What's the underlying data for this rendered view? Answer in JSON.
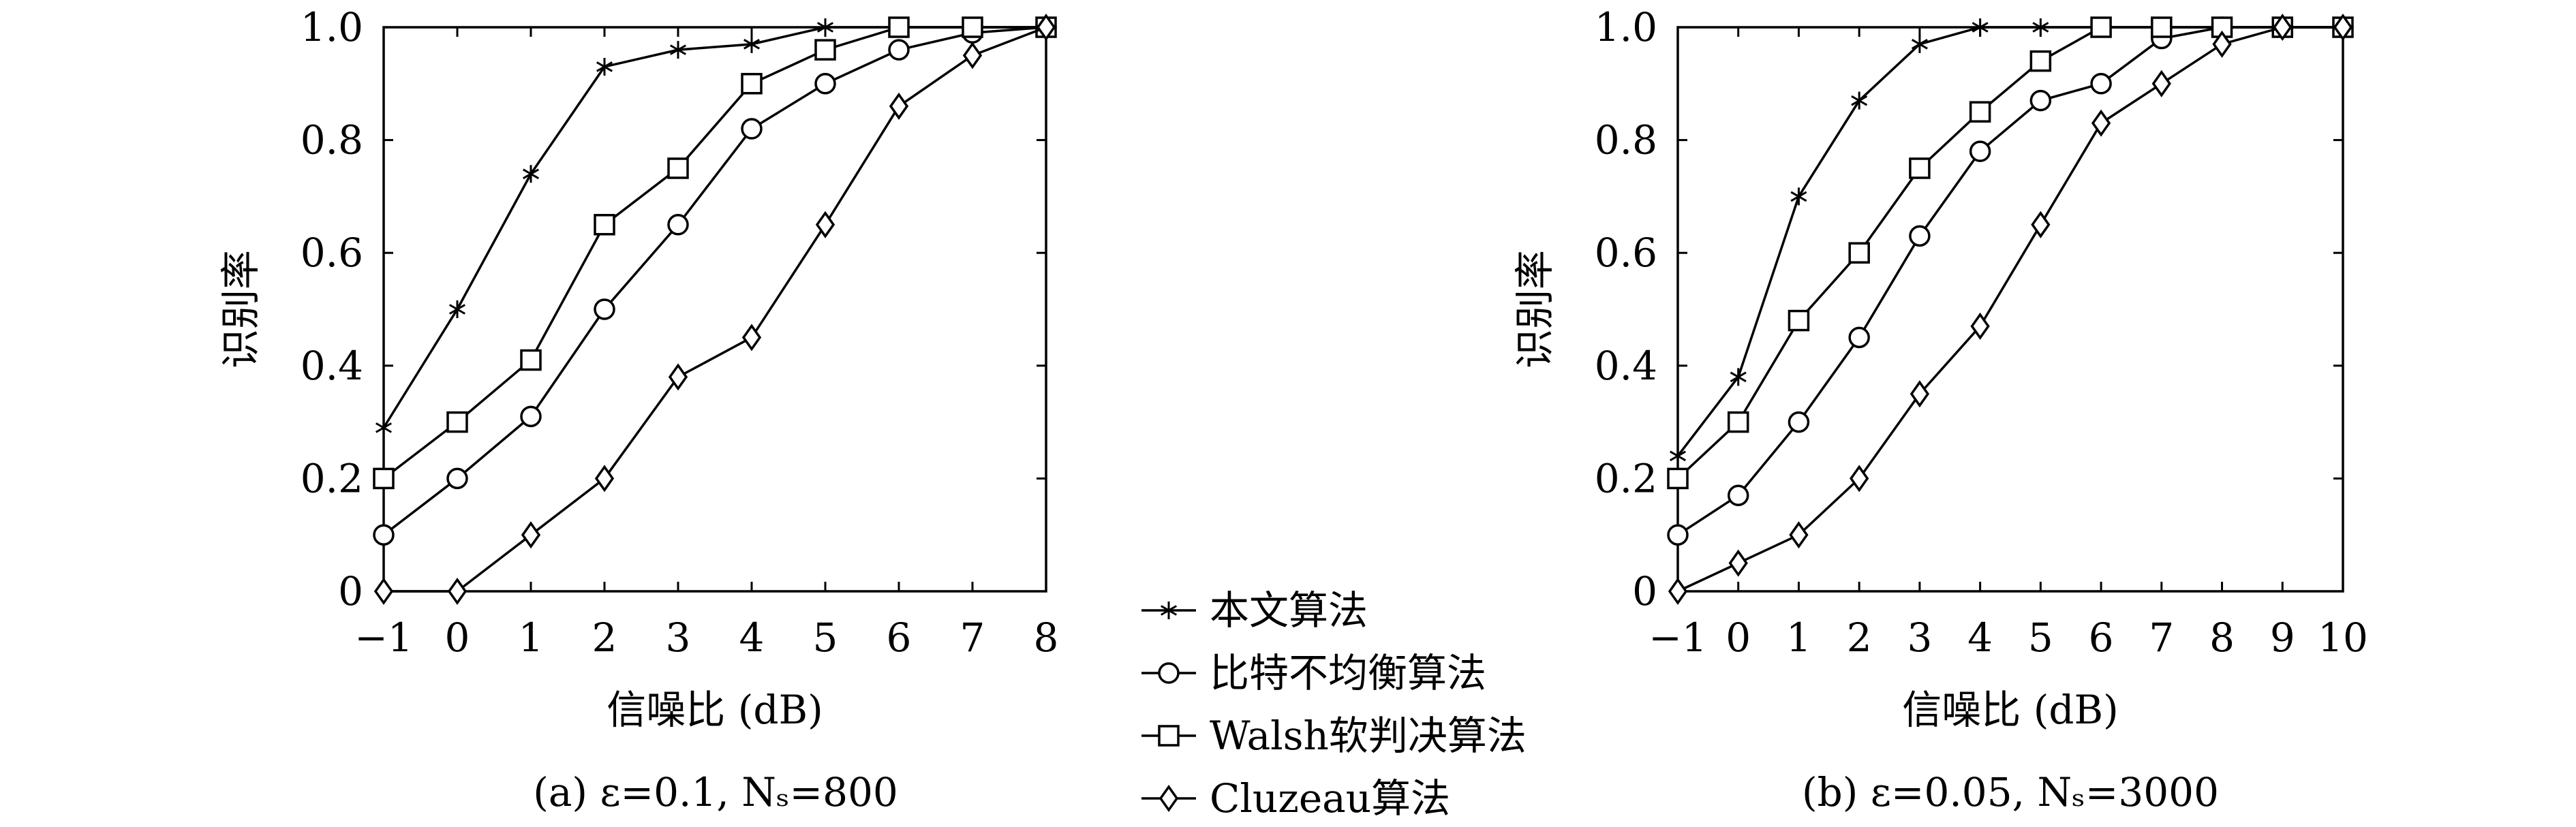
{
  "chart_data": [
    {
      "type": "line",
      "caption": "(a) ε=0.1, Nₛ=800",
      "xlabel": "信噪比 (dB)",
      "ylabel": "识别率",
      "xlim": [
        -1,
        8
      ],
      "ylim": [
        0,
        1.0
      ],
      "x_ticks": [
        "−1",
        "0",
        "1",
        "2",
        "3",
        "4",
        "5",
        "6",
        "7",
        "8"
      ],
      "y_ticks": [
        "0",
        "0.2",
        "0.4",
        "0.6",
        "0.8",
        "1.0"
      ],
      "grid": false,
      "x": [
        -1,
        0,
        1,
        2,
        3,
        4,
        5,
        6,
        7,
        8
      ],
      "series": [
        {
          "name": "本文算法",
          "marker": "star",
          "values": [
            0.29,
            0.5,
            0.74,
            0.93,
            0.96,
            0.97,
            1.0,
            1.0,
            1.0,
            1.0
          ]
        },
        {
          "name": "比特不均衡算法",
          "marker": "circle",
          "values": [
            0.1,
            0.2,
            0.31,
            0.5,
            0.65,
            0.82,
            0.9,
            0.96,
            0.99,
            1.0
          ]
        },
        {
          "name": "Walsh软判决算法",
          "marker": "square",
          "values": [
            0.2,
            0.3,
            0.41,
            0.65,
            0.75,
            0.9,
            0.96,
            1.0,
            1.0,
            1.0
          ]
        },
        {
          "name": "Cluzeau算法",
          "marker": "diamond",
          "values": [
            0.0,
            0.0,
            0.1,
            0.2,
            0.38,
            0.45,
            0.65,
            0.86,
            0.95,
            1.0
          ]
        }
      ]
    },
    {
      "type": "line",
      "caption": "(b) ε=0.05, Nₛ=3000",
      "xlabel": "信噪比 (dB)",
      "ylabel": "识别率",
      "xlim": [
        -1,
        10
      ],
      "ylim": [
        0,
        1.0
      ],
      "x_ticks": [
        "−1",
        "0",
        "1",
        "2",
        "3",
        "4",
        "5",
        "6",
        "7",
        "8",
        "9",
        "10"
      ],
      "y_ticks": [
        "0",
        "0.2",
        "0.4",
        "0.6",
        "0.8",
        "1.0"
      ],
      "grid": false,
      "x": [
        -1,
        0,
        1,
        2,
        3,
        4,
        5,
        6,
        7,
        8,
        9,
        10
      ],
      "series": [
        {
          "name": "本文算法",
          "marker": "star",
          "values": [
            0.24,
            0.38,
            0.7,
            0.87,
            0.97,
            1.0,
            1.0,
            1.0,
            1.0,
            1.0,
            1.0,
            1.0
          ]
        },
        {
          "name": "比特不均衡算法",
          "marker": "circle",
          "values": [
            0.1,
            0.17,
            0.3,
            0.45,
            0.63,
            0.78,
            0.87,
            0.9,
            0.98,
            1.0,
            1.0,
            1.0
          ]
        },
        {
          "name": "Walsh软判决算法",
          "marker": "square",
          "values": [
            0.2,
            0.3,
            0.48,
            0.6,
            0.75,
            0.85,
            0.94,
            1.0,
            1.0,
            1.0,
            1.0,
            1.0
          ]
        },
        {
          "name": "Cluzeau算法",
          "marker": "diamond",
          "values": [
            0.0,
            0.05,
            0.1,
            0.2,
            0.35,
            0.47,
            0.65,
            0.83,
            0.9,
            0.97,
            1.0,
            1.0
          ]
        }
      ]
    }
  ],
  "legend": {
    "position": "center-bottom",
    "items": [
      {
        "label": "本文算法",
        "marker": "star"
      },
      {
        "label": "比特不均衡算法",
        "marker": "circle"
      },
      {
        "label": "Walsh软判决算法",
        "marker": "square"
      },
      {
        "label": "Cluzeau算法",
        "marker": "diamond"
      }
    ]
  }
}
